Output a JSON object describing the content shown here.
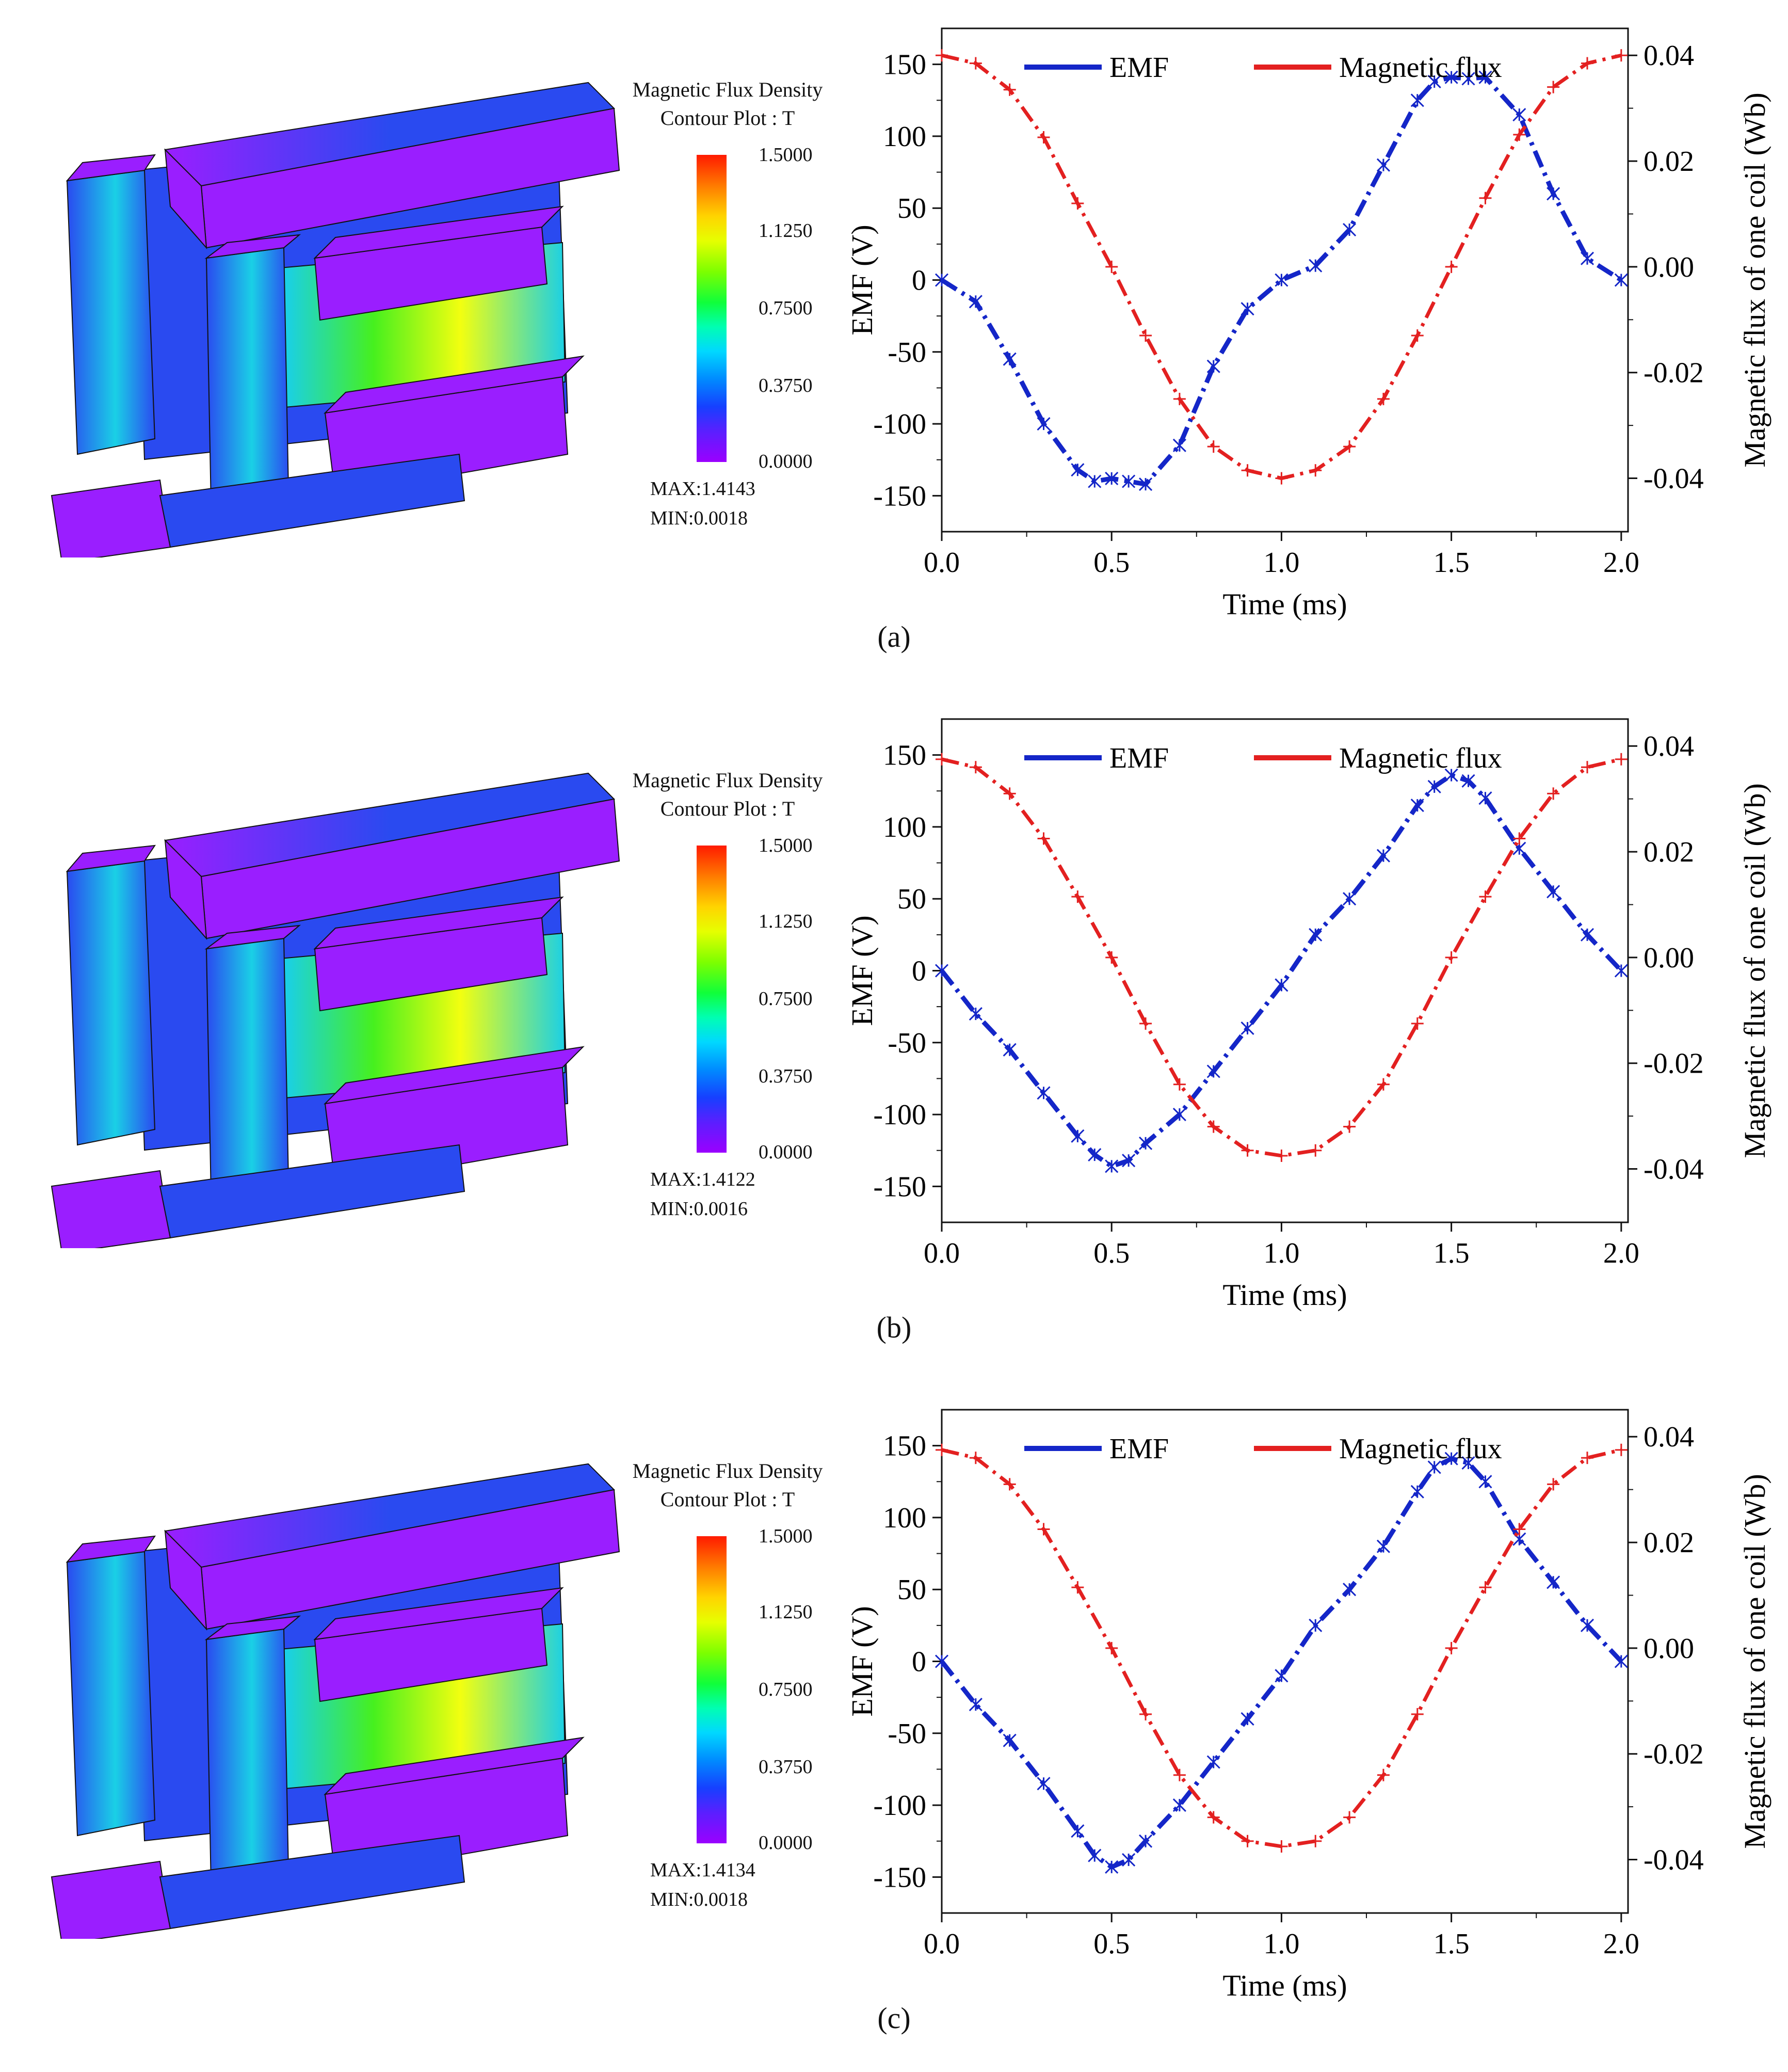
{
  "colors": {
    "emf": "#1426c8",
    "flux": "#e32020",
    "violet": "#9a1eff",
    "blue": "#2a4af0",
    "cyan": "#1ad0e6",
    "green": "#46f01e",
    "yellow": "#f2ff10"
  },
  "panels": [
    {
      "caption": "(a)",
      "legend": {
        "title_line1": "Magnetic Flux Density",
        "title_line2": "Contour Plot : T",
        "ticks": [
          "1.5000",
          "1.1250",
          "0.7500",
          "0.3750",
          "0.0000"
        ],
        "max": "MAX:1.4143",
        "min": "MIN:0.0018"
      }
    },
    {
      "caption": "(b)",
      "legend": {
        "title_line1": "Magnetic Flux Density",
        "title_line2": "Contour Plot : T",
        "ticks": [
          "1.5000",
          "1.1250",
          "0.7500",
          "0.3750",
          "0.0000"
        ],
        "max": "MAX:1.4122",
        "min": "MIN:0.0016"
      }
    },
    {
      "caption": "(c)",
      "legend": {
        "title_line1": "Magnetic Flux Density",
        "title_line2": "Contour Plot : T",
        "ticks": [
          "1.5000",
          "1.1250",
          "0.7500",
          "0.3750",
          "0.0000"
        ],
        "max": "MAX:1.4134",
        "min": "MIN:0.0018"
      }
    }
  ],
  "chart_data": [
    {
      "type": "line",
      "title": "",
      "xlabel": "Time (ms)",
      "ylabel": "EMF (V)",
      "y2label": "Magnetic flux of one coil (Wb)",
      "xlim": [
        0,
        2.02
      ],
      "ylim": [
        -175,
        175
      ],
      "y2lim": [
        -0.0501,
        0.0451
      ],
      "xticks": [
        0.0,
        0.5,
        1.0,
        1.5,
        2.0
      ],
      "xticklabels": [
        "0.0",
        "0.5",
        "1.0",
        "1.5",
        "2.0"
      ],
      "yticks": [
        150,
        100,
        50,
        0,
        -50,
        -100,
        -150
      ],
      "yticklabels": [
        "150",
        "100",
        "50",
        "0",
        "-50",
        "-100",
        "-150"
      ],
      "y2ticks": [
        0.04,
        0.02,
        0.0,
        -0.02,
        -0.04
      ],
      "y2ticklabels": [
        "0.04",
        "0.02",
        "0.00",
        "-0.02",
        "-0.04"
      ],
      "legend": [
        "EMF",
        "Magnetic flux"
      ],
      "legend_position": "top",
      "series": [
        {
          "name": "EMF",
          "axis": "left",
          "marker": "asterisk",
          "x": [
            0,
            0.1,
            0.2,
            0.3,
            0.4,
            0.45,
            0.5,
            0.55,
            0.6,
            0.7,
            0.8,
            0.9,
            1.0,
            1.1,
            1.2,
            1.3,
            1.4,
            1.45,
            1.5,
            1.55,
            1.6,
            1.7,
            1.8,
            1.9,
            2.0
          ],
          "values": [
            0,
            -15,
            -55,
            -100,
            -132,
            -140,
            -138,
            -140,
            -142,
            -115,
            -60,
            -20,
            0,
            10,
            35,
            80,
            125,
            138,
            141,
            140,
            141,
            115,
            60,
            15,
            0
          ]
        },
        {
          "name": "Magnetic flux",
          "axis": "right",
          "marker": "plus",
          "x": [
            0,
            0.1,
            0.2,
            0.3,
            0.4,
            0.5,
            0.6,
            0.7,
            0.8,
            0.9,
            1.0,
            1.1,
            1.2,
            1.3,
            1.4,
            1.5,
            1.6,
            1.7,
            1.8,
            1.9,
            2.0
          ],
          "values": [
            0.04,
            0.0385,
            0.0335,
            0.0245,
            0.012,
            0.0,
            -0.013,
            -0.025,
            -0.034,
            -0.0385,
            -0.04,
            -0.0385,
            -0.034,
            -0.025,
            -0.013,
            0.0,
            0.013,
            0.025,
            0.034,
            0.0385,
            0.04
          ]
        }
      ]
    },
    {
      "type": "line",
      "title": "",
      "xlabel": "Time (ms)",
      "ylabel": "EMF (V)",
      "y2label": "Magnetic flux of one coil (Wb)",
      "xlim": [
        0,
        2.02
      ],
      "ylim": [
        -175,
        175
      ],
      "y2lim": [
        -0.0501,
        0.0451
      ],
      "xticks": [
        0.0,
        0.5,
        1.0,
        1.5,
        2.0
      ],
      "xticklabels": [
        "0.0",
        "0.5",
        "1.0",
        "1.5",
        "2.0"
      ],
      "yticks": [
        150,
        100,
        50,
        0,
        -50,
        -100,
        -150
      ],
      "yticklabels": [
        "150",
        "100",
        "50",
        "0",
        "-50",
        "-100",
        "-150"
      ],
      "y2ticks": [
        0.04,
        0.02,
        0.0,
        -0.02,
        -0.04
      ],
      "y2ticklabels": [
        "0.04",
        "0.02",
        "0.00",
        "-0.02",
        "-0.04"
      ],
      "legend": [
        "EMF",
        "Magnetic flux"
      ],
      "legend_position": "top",
      "series": [
        {
          "name": "EMF",
          "axis": "left",
          "marker": "asterisk",
          "x": [
            0,
            0.1,
            0.2,
            0.3,
            0.4,
            0.45,
            0.5,
            0.55,
            0.6,
            0.7,
            0.8,
            0.9,
            1.0,
            1.1,
            1.2,
            1.3,
            1.4,
            1.45,
            1.5,
            1.55,
            1.6,
            1.7,
            1.8,
            1.9,
            2.0
          ],
          "values": [
            0,
            -30,
            -55,
            -85,
            -115,
            -128,
            -136,
            -132,
            -120,
            -100,
            -70,
            -40,
            -10,
            25,
            50,
            80,
            115,
            128,
            136,
            132,
            120,
            85,
            55,
            25,
            0
          ]
        },
        {
          "name": "Magnetic flux",
          "axis": "right",
          "marker": "plus",
          "x": [
            0,
            0.1,
            0.2,
            0.3,
            0.4,
            0.5,
            0.6,
            0.7,
            0.8,
            0.9,
            1.0,
            1.1,
            1.2,
            1.3,
            1.4,
            1.5,
            1.6,
            1.7,
            1.8,
            1.9,
            2.0
          ],
          "values": [
            0.0375,
            0.036,
            0.031,
            0.0225,
            0.0115,
            0.0,
            -0.0125,
            -0.024,
            -0.032,
            -0.0365,
            -0.0375,
            -0.0365,
            -0.032,
            -0.024,
            -0.0125,
            0.0,
            0.0115,
            0.0225,
            0.031,
            0.036,
            0.0375
          ]
        }
      ]
    },
    {
      "type": "line",
      "title": "",
      "xlabel": "Time (ms)",
      "ylabel": "EMF (V)",
      "y2label": "Magnetic flux of one coil (Wb)",
      "xlim": [
        0,
        2.02
      ],
      "ylim": [
        -175,
        175
      ],
      "y2lim": [
        -0.0501,
        0.0451
      ],
      "xticks": [
        0.0,
        0.5,
        1.0,
        1.5,
        2.0
      ],
      "xticklabels": [
        "0.0",
        "0.5",
        "1.0",
        "1.5",
        "2.0"
      ],
      "yticks": [
        150,
        100,
        50,
        0,
        -50,
        -100,
        -150
      ],
      "yticklabels": [
        "150",
        "100",
        "50",
        "0",
        "-50",
        "-100",
        "-150"
      ],
      "y2ticks": [
        0.04,
        0.02,
        0.0,
        -0.02,
        -0.04
      ],
      "y2ticklabels": [
        "0.04",
        "0.02",
        "0.00",
        "-0.02",
        "-0.04"
      ],
      "legend": [
        "EMF",
        "Magnetic flux"
      ],
      "legend_position": "top",
      "series": [
        {
          "name": "EMF",
          "axis": "left",
          "marker": "asterisk",
          "x": [
            0,
            0.1,
            0.2,
            0.3,
            0.4,
            0.45,
            0.5,
            0.55,
            0.6,
            0.7,
            0.8,
            0.9,
            1.0,
            1.1,
            1.2,
            1.3,
            1.4,
            1.45,
            1.5,
            1.55,
            1.6,
            1.7,
            1.8,
            1.9,
            2.0
          ],
          "values": [
            0,
            -30,
            -55,
            -85,
            -118,
            -135,
            -143,
            -138,
            -125,
            -100,
            -70,
            -40,
            -10,
            25,
            50,
            80,
            118,
            135,
            141,
            138,
            125,
            85,
            55,
            25,
            0
          ]
        },
        {
          "name": "Magnetic flux",
          "axis": "right",
          "marker": "plus",
          "x": [
            0,
            0.1,
            0.2,
            0.3,
            0.4,
            0.5,
            0.6,
            0.7,
            0.8,
            0.9,
            1.0,
            1.1,
            1.2,
            1.3,
            1.4,
            1.5,
            1.6,
            1.7,
            1.8,
            1.9,
            2.0
          ],
          "values": [
            0.0375,
            0.036,
            0.031,
            0.0225,
            0.0115,
            0.0,
            -0.0125,
            -0.024,
            -0.032,
            -0.0365,
            -0.0375,
            -0.0365,
            -0.032,
            -0.024,
            -0.0125,
            0.0,
            0.0115,
            0.0225,
            0.031,
            0.036,
            0.0375
          ]
        }
      ]
    }
  ]
}
